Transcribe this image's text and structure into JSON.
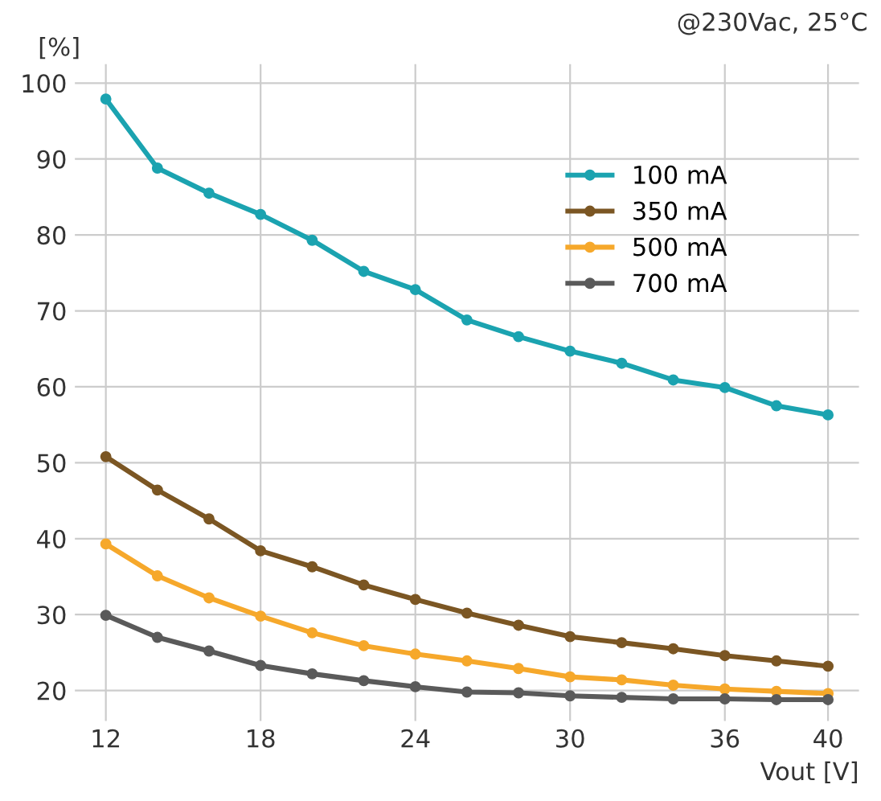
{
  "chart_data": {
    "type": "line",
    "xlabel": "Vout [V]",
    "ylabel": "[%]",
    "annotations": [
      "@230Vac, 25°C"
    ],
    "x": [
      12,
      14,
      16,
      18,
      20,
      22,
      24,
      26,
      28,
      30,
      32,
      34,
      36,
      38,
      40
    ],
    "series": [
      {
        "name": "100 mA",
        "color": "#1ba3b0",
        "values": [
          97.9,
          88.8,
          85.5,
          82.7,
          79.3,
          75.2,
          72.8,
          68.8,
          66.6,
          64.7,
          63.1,
          60.9,
          59.9,
          57.5,
          56.3
        ]
      },
      {
        "name": "350 mA",
        "color": "#7b5623",
        "values": [
          50.8,
          46.4,
          42.6,
          38.4,
          36.3,
          33.9,
          32.0,
          30.2,
          28.6,
          27.1,
          26.3,
          25.5,
          24.6,
          23.9,
          23.2
        ]
      },
      {
        "name": "500 mA",
        "color": "#f6a82b",
        "values": [
          39.3,
          35.1,
          32.2,
          29.8,
          27.6,
          25.9,
          24.8,
          23.9,
          22.9,
          21.8,
          21.4,
          20.7,
          20.2,
          19.9,
          19.6
        ]
      },
      {
        "name": "700 mA",
        "color": "#5a5a5a",
        "values": [
          29.9,
          27.0,
          25.2,
          23.3,
          22.2,
          21.3,
          20.5,
          19.8,
          19.7,
          19.3,
          19.1,
          18.9,
          18.9,
          18.8,
          18.8
        ]
      }
    ],
    "xlim": [
      10.8,
      41.2
    ],
    "ylim": [
      16,
      102.5
    ],
    "xticks": [
      12,
      18,
      24,
      30,
      36,
      40
    ],
    "yticks": [
      20,
      30,
      40,
      50,
      60,
      70,
      80,
      90,
      100
    ],
    "grid": true,
    "legend": "top right",
    "marker": "circle",
    "line_style": "solid"
  }
}
